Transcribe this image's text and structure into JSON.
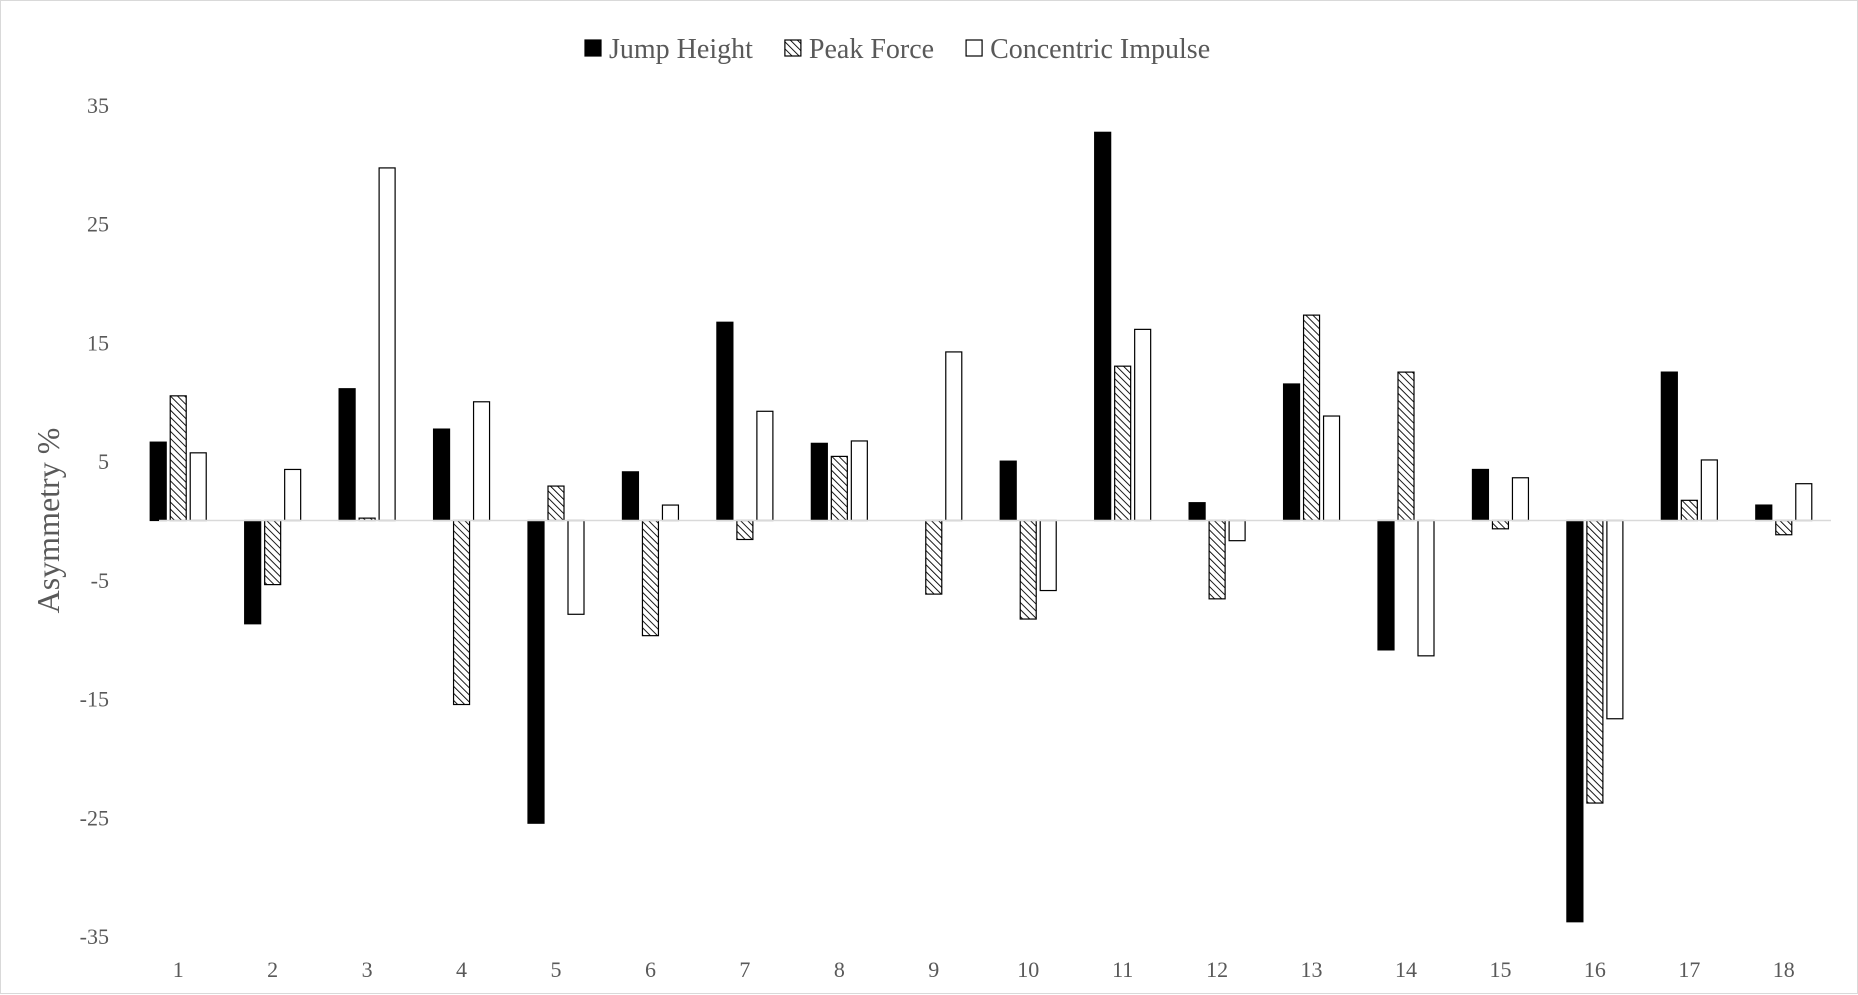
{
  "chart_data": {
    "type": "bar",
    "title": "",
    "xlabel": "",
    "ylabel": "Asymmetry %",
    "ylim": [
      -35,
      35
    ],
    "yticks": [
      35,
      25,
      15,
      5,
      -5,
      -15,
      -25,
      -35
    ],
    "grid": false,
    "legend_position": "top-center",
    "categories": [
      "1",
      "2",
      "3",
      "4",
      "5",
      "6",
      "7",
      "8",
      "9",
      "10",
      "11",
      "12",
      "13",
      "14",
      "15",
      "16",
      "17",
      "18"
    ],
    "series": [
      {
        "name": "Jump Height",
        "fill": "solid",
        "color": "#000000",
        "values": [
          6.6,
          -8.7,
          11.1,
          7.7,
          -25.5,
          4.1,
          16.7,
          6.5,
          0,
          5.0,
          32.7,
          1.5,
          11.5,
          -10.9,
          4.3,
          -33.8,
          12.5,
          1.3
        ]
      },
      {
        "name": "Peak Force",
        "fill": "hatched",
        "color": "#000000",
        "values": [
          10.5,
          -5.4,
          0.2,
          -15.5,
          2.9,
          -9.7,
          -1.6,
          5.4,
          -6.2,
          -8.3,
          13.0,
          -6.6,
          17.3,
          12.5,
          -0.7,
          -23.8,
          1.7,
          -1.2
        ]
      },
      {
        "name": "Concentric Impulse",
        "fill": "hollow",
        "color": "#000000",
        "values": [
          5.7,
          4.3,
          29.7,
          10.0,
          -7.9,
          1.3,
          9.2,
          6.7,
          14.2,
          -5.9,
          16.1,
          -1.7,
          8.8,
          -11.4,
          3.6,
          -16.7,
          5.1,
          3.1
        ]
      }
    ]
  },
  "colors": {
    "axis_line": "#d9d9d9",
    "text": "#595959",
    "bar_stroke": "#000000",
    "background": "#ffffff"
  }
}
